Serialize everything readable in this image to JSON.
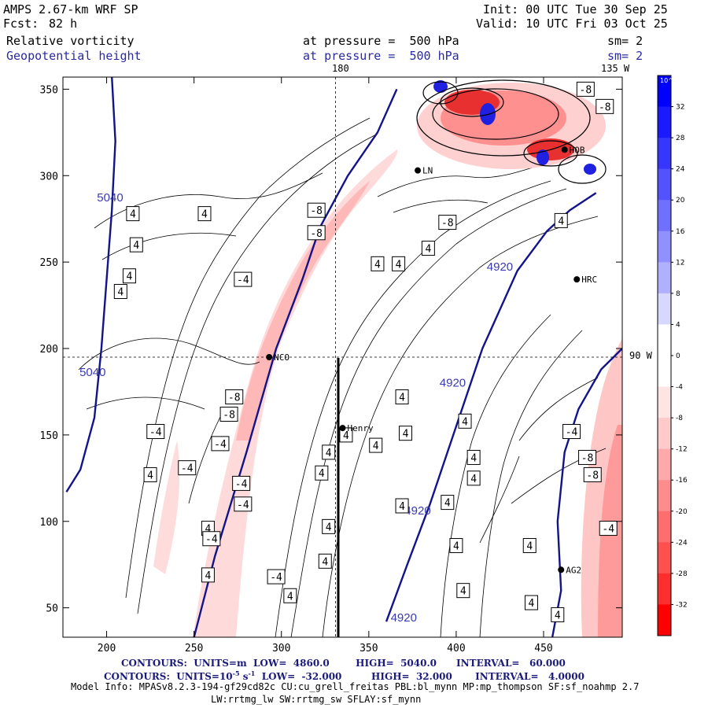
{
  "header": {
    "model": "AMPS 2.67-km WRF SP",
    "fcst_label": "Fcst:",
    "fcst_value": "82 h",
    "init": "Init: 00 UTC Tue 30 Sep 25",
    "valid": "Valid: 10 UTC Fri 03 Oct 25",
    "field1": {
      "name": "Relative vorticity",
      "level": "at pressure =  500 hPa",
      "sm": "sm= 2"
    },
    "field2": {
      "name": "Geopotential height",
      "level": "at pressure =  500 hPa",
      "sm": "sm= 2"
    },
    "top_lon_label": "180",
    "top_right_lon_label": "135 W",
    "right_lon_label": "90 W"
  },
  "chart_data": {
    "type": "contour-map",
    "xlim": [
      175,
      495
    ],
    "ylim": [
      33,
      357
    ],
    "xticks": [
      200,
      250,
      300,
      350,
      400,
      450
    ],
    "yticks": [
      50,
      100,
      150,
      200,
      250,
      300,
      350
    ],
    "height_contours": [
      {
        "label": "5040",
        "points": [
          [
            203,
            357
          ],
          [
            205,
            320
          ],
          [
            203,
            280
          ],
          [
            200,
            240
          ],
          [
            197,
            200
          ],
          [
            193,
            160
          ],
          [
            185,
            130
          ],
          [
            177,
            117
          ]
        ],
        "label_positions": [
          [
            202,
            285
          ],
          [
            192,
            184
          ]
        ]
      },
      {
        "label": "4920",
        "points": [
          [
            250,
            33
          ],
          [
            262,
            80
          ],
          [
            280,
            140
          ],
          [
            297,
            200
          ],
          [
            312,
            240
          ],
          [
            322,
            270
          ],
          [
            338,
            300
          ],
          [
            355,
            325
          ],
          [
            366,
            350
          ]
        ],
        "label_positions": []
      },
      {
        "label": "4920",
        "points": [
          [
            360,
            42
          ],
          [
            372,
            75
          ],
          [
            385,
            110
          ],
          [
            400,
            155
          ],
          [
            415,
            200
          ],
          [
            435,
            245
          ],
          [
            452,
            268
          ],
          [
            465,
            280
          ],
          [
            480,
            290
          ]
        ],
        "label_positions": [
          [
            425,
            245
          ],
          [
            398,
            178
          ],
          [
            378,
            104
          ],
          [
            370,
            42
          ]
        ]
      },
      {
        "label": "4920",
        "points": [
          [
            455,
            33
          ],
          [
            460,
            60
          ],
          [
            458,
            100
          ],
          [
            462,
            140
          ],
          [
            470,
            165
          ],
          [
            483,
            188
          ],
          [
            495,
            200
          ]
        ],
        "label_positions": []
      }
    ],
    "vorticity_labels": [
      {
        "text": "4",
        "x": 215,
        "y": 278
      },
      {
        "text": "4",
        "x": 256,
        "y": 278
      },
      {
        "text": "4",
        "x": 217,
        "y": 260
      },
      {
        "text": "4",
        "x": 213,
        "y": 242
      },
      {
        "text": "4",
        "x": 208,
        "y": 233
      },
      {
        "text": "-4",
        "x": 278,
        "y": 240
      },
      {
        "text": "-8",
        "x": 320,
        "y": 280
      },
      {
        "text": "-8",
        "x": 320,
        "y": 267
      },
      {
        "text": "-8",
        "x": 395,
        "y": 273
      },
      {
        "text": "-8",
        "x": 474,
        "y": 350
      },
      {
        "text": "-8",
        "x": 485,
        "y": 340
      },
      {
        "text": "4",
        "x": 460,
        "y": 274
      },
      {
        "text": "4",
        "x": 384,
        "y": 258
      },
      {
        "text": "4",
        "x": 367,
        "y": 249
      },
      {
        "text": "4",
        "x": 355,
        "y": 249
      },
      {
        "text": "-8",
        "x": 273,
        "y": 172
      },
      {
        "text": "-8",
        "x": 270,
        "y": 162
      },
      {
        "text": "-4",
        "x": 228,
        "y": 152
      },
      {
        "text": "-4",
        "x": 265,
        "y": 145
      },
      {
        "text": "-4",
        "x": 246,
        "y": 131
      },
      {
        "text": "4",
        "x": 225,
        "y": 127
      },
      {
        "text": "-4",
        "x": 277,
        "y": 122
      },
      {
        "text": "-4",
        "x": 278,
        "y": 110
      },
      {
        "text": "4",
        "x": 258,
        "y": 96
      },
      {
        "text": "-4",
        "x": 260,
        "y": 90
      },
      {
        "text": "4",
        "x": 258,
        "y": 69
      },
      {
        "text": "-4",
        "x": 297,
        "y": 68
      },
      {
        "text": "4",
        "x": 305,
        "y": 57
      },
      {
        "text": "4",
        "x": 369,
        "y": 172
      },
      {
        "text": "4",
        "x": 337,
        "y": 150
      },
      {
        "text": "4",
        "x": 327,
        "y": 140
      },
      {
        "text": "4",
        "x": 354,
        "y": 144
      },
      {
        "text": "4",
        "x": 323,
        "y": 128
      },
      {
        "text": "4",
        "x": 325,
        "y": 77
      },
      {
        "text": "4",
        "x": 327,
        "y": 97
      },
      {
        "text": "4",
        "x": 371,
        "y": 151
      },
      {
        "text": "4",
        "x": 405,
        "y": 158
      },
      {
        "text": "4",
        "x": 410,
        "y": 137
      },
      {
        "text": "4",
        "x": 410,
        "y": 125
      },
      {
        "text": "4",
        "x": 369,
        "y": 109
      },
      {
        "text": "4",
        "x": 395,
        "y": 111
      },
      {
        "text": "4",
        "x": 442,
        "y": 86
      },
      {
        "text": "4",
        "x": 400,
        "y": 86
      },
      {
        "text": "4",
        "x": 404,
        "y": 60
      },
      {
        "text": "4",
        "x": 443,
        "y": 53
      },
      {
        "text": "-4",
        "x": 466,
        "y": 152
      },
      {
        "text": "-8",
        "x": 475,
        "y": 137
      },
      {
        "text": "-8",
        "x": 478,
        "y": 127
      },
      {
        "text": "-4",
        "x": 487,
        "y": 96
      },
      {
        "text": "4",
        "x": 458,
        "y": 46
      }
    ],
    "stations": [
      {
        "name": "NCO",
        "x": 293,
        "y": 195
      },
      {
        "name": "Henry",
        "x": 335,
        "y": 154
      },
      {
        "name": "HRC",
        "x": 469,
        "y": 240
      },
      {
        "name": "AG2",
        "x": 460,
        "y": 72
      },
      {
        "name": "LN",
        "x": 378,
        "y": 303
      },
      {
        "name": "HOB",
        "x": 462,
        "y": 315
      }
    ],
    "reference_lines": {
      "vertical_x": 331,
      "horizontal_y": 195
    },
    "colorbar": {
      "unit": "10^-5 s^-1",
      "levels": [
        36,
        32,
        28,
        24,
        20,
        16,
        12,
        8,
        4,
        0,
        -4,
        -8,
        -12,
        -16,
        -20,
        -24,
        -28,
        -32,
        -36
      ],
      "tick_labels": [
        "32",
        "28",
        "24",
        "20",
        "16",
        "12",
        "8",
        "4",
        "0",
        "-4",
        "-8",
        "-12",
        "-16",
        "-20",
        "-24",
        "-28",
        "-32"
      ],
      "colors": [
        "#0000ff",
        "#1a1aff",
        "#3636ff",
        "#5252ff",
        "#7070ff",
        "#9090ff",
        "#b0b0ff",
        "#d8d8ff",
        "#ffffff",
        "#ffffff",
        "#ffe4e4",
        "#ffcaca",
        "#ffaaaa",
        "#ff8c8c",
        "#ff6e6e",
        "#ff5050",
        "#ff2e2e",
        "#ff0000"
      ]
    },
    "height_contour_info": {
      "units": "m",
      "low": "4860.0",
      "high": "5040.0",
      "interval": "60.000"
    },
    "vorticity_contour_info": {
      "units": "10^-5 s^-1",
      "low": "-32.000",
      "high": "32.000",
      "interval": "4.0000"
    }
  },
  "footer": {
    "line1": "CONTOURS:  UNITS=m  LOW=  4860.0        HIGH=  5040.0      INTERVAL=   60.000",
    "line2_a": "CONTOURS:  UNITS=10",
    "line2_exp": "-5",
    "line2_b": " s",
    "line2_exp2": "-1",
    "line2_c": "  LOW=  -32.000         HIGH=  32.000       INTERVAL=   4.0000",
    "model_info": "Model Info: MPASv8.2.3-194-gf29cd82c CU:cu_grell_freitas PBL:bl_mynn MP:mp_thompson SF:sf_noahmp 2.7",
    "model_info2": "LW:rrtmg_lw SW:rrtmg_sw SFLAY:sf_mynn"
  }
}
